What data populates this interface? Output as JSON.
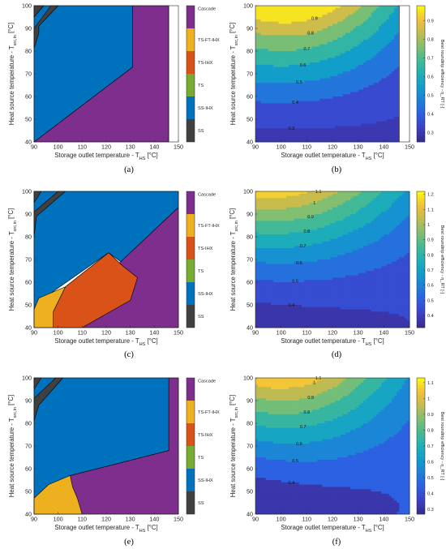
{
  "panels": [
    {
      "caption": "(a)",
      "xlabel": "Storage outlet temperature - T_HS [°C]",
      "ylabel": "Heat source temperature - T_src,in [°C]",
      "chart_data": {
        "type": "heatmap",
        "subtype": "categorical-region-map",
        "x_ticks": [
          90,
          100,
          110,
          120,
          130,
          140,
          150
        ],
        "y_ticks": [
          40,
          50,
          60,
          70,
          80,
          90,
          100
        ],
        "xlim": [
          90,
          150
        ],
        "ylim": [
          40,
          100
        ],
        "categories": [
          "SS",
          "SS-IHX",
          "TS",
          "TS-IHX",
          "TS-FT-IHX",
          "Cascade"
        ],
        "regions": [
          {
            "category": "Cascade",
            "polygon": [
              [
                90,
                40
              ],
              [
                131,
                73
              ],
              [
                131,
                100
              ],
              [
                146,
                100
              ],
              [
                146,
                40
              ]
            ]
          },
          {
            "category": "SS-IHX",
            "polygon": [
              [
                90,
                40
              ],
              [
                90,
                100
              ],
              [
                131,
                100
              ],
              [
                131,
                73
              ]
            ]
          },
          {
            "category": "SS",
            "polygon": [
              [
                90,
                81
              ],
              [
                90,
                90
              ],
              [
                97,
                100
              ],
              [
                100,
                100
              ],
              [
                92,
                91
              ],
              [
                92,
                88
              ]
            ]
          },
          {
            "category": "SS",
            "polygon": [
              [
                90,
                95
              ],
              [
                90,
                100
              ],
              [
                94,
                100
              ]
            ]
          }
        ],
        "no_data_x_range": [
          146,
          150
        ]
      }
    },
    {
      "caption": "(b)",
      "xlabel": "Storage outlet temperature - T_HS [°C]",
      "ylabel": "Heat source temperature - T_src,in [°C]",
      "colorbar_label": "Best roundtrip efficiency - η_RT [-]",
      "chart_data": {
        "type": "heatmap",
        "subtype": "filled-contour",
        "x_ticks": [
          90,
          100,
          110,
          120,
          130,
          140,
          150
        ],
        "y_ticks": [
          40,
          50,
          60,
          70,
          80,
          90,
          100
        ],
        "xlim": [
          90,
          150
        ],
        "ylim": [
          40,
          100
        ],
        "colorbar_ticks": [
          0.3,
          0.4,
          0.5,
          0.6,
          0.7,
          0.8,
          0.9
        ],
        "clim": [
          0.25,
          0.98
        ],
        "contour_labels": [
          "0.3",
          "0.4",
          "0.5",
          "0.6",
          "0.7",
          "0.8",
          "0.9"
        ],
        "no_data_x_range": [
          146,
          150
        ]
      }
    },
    {
      "caption": "(c)",
      "xlabel": "Storage outlet temperature - T_HS [°C]",
      "ylabel": "Heat source temperature - T_src,in [°C]",
      "chart_data": {
        "type": "heatmap",
        "subtype": "categorical-region-map",
        "x_ticks": [
          90,
          100,
          110,
          120,
          130,
          140,
          150
        ],
        "y_ticks": [
          40,
          50,
          60,
          70,
          80,
          90,
          100
        ],
        "xlim": [
          90,
          150
        ],
        "ylim": [
          40,
          100
        ],
        "categories": [
          "SS",
          "SS-IHX",
          "TS",
          "TS-IHX",
          "TS-FT-IHX",
          "Cascade"
        ],
        "regions": [
          {
            "category": "Cascade",
            "polygon": [
              [
                90,
                40
              ],
              [
                90,
                46
              ],
              [
                110,
                53
              ],
              [
                150,
                93
              ],
              [
                150,
                40
              ]
            ]
          },
          {
            "category": "SS-IHX",
            "polygon": [
              [
                90,
                46
              ],
              [
                90,
                100
              ],
              [
                150,
                100
              ],
              [
                150,
                93
              ],
              [
                126,
                69
              ],
              [
                121,
                73
              ],
              [
                94,
                53
              ]
            ]
          },
          {
            "category": "TS-IHX",
            "polygon": [
              [
                98,
                40
              ],
              [
                110,
                40
              ],
              [
                130,
                52
              ],
              [
                133,
                62
              ],
              [
                127,
                67
              ],
              [
                124,
                70
              ],
              [
                121,
                73
              ],
              [
                103,
                58
              ],
              [
                98,
                47
              ]
            ]
          },
          {
            "category": "TS-FT-IHX",
            "polygon": [
              [
                90,
                40
              ],
              [
                98,
                40
              ],
              [
                98,
                47
              ],
              [
                103,
                58
              ],
              [
                92,
                53
              ],
              [
                90,
                48
              ]
            ]
          },
          {
            "category": "SS",
            "polygon": [
              [
                90,
                80
              ],
              [
                90,
                91
              ],
              [
                100,
                100
              ],
              [
                103,
                100
              ],
              [
                91,
                89
              ]
            ]
          },
          {
            "category": "SS",
            "polygon": [
              [
                90,
                95
              ],
              [
                90,
                100
              ],
              [
                93,
                100
              ]
            ]
          }
        ]
      }
    },
    {
      "caption": "(d)",
      "xlabel": "Storage outlet temperature - T_HS [°C]",
      "ylabel": "Heat source temperature - T_src,in [°C]",
      "colorbar_label": "Best roundtrip efficiency - η_RT [-]",
      "chart_data": {
        "type": "heatmap",
        "subtype": "filled-contour",
        "x_ticks": [
          90,
          100,
          110,
          120,
          130,
          140,
          150
        ],
        "y_ticks": [
          40,
          50,
          60,
          70,
          80,
          90,
          100
        ],
        "xlim": [
          90,
          150
        ],
        "ylim": [
          40,
          100
        ],
        "colorbar_ticks": [
          0.4,
          0.5,
          0.6,
          0.7,
          0.8,
          0.9,
          1,
          1.1,
          1.2
        ],
        "clim": [
          0.32,
          1.22
        ],
        "contour_labels": [
          "0.4",
          "0.5",
          "0.6",
          "0.7",
          "0.8",
          "0.9",
          "1",
          "1.1"
        ]
      }
    },
    {
      "caption": "(e)",
      "xlabel": "Storage outlet temperature - T_HS [°C]",
      "ylabel": "Heat source temperature - T_src,in [°C]",
      "chart_data": {
        "type": "heatmap",
        "subtype": "categorical-region-map",
        "x_ticks": [
          90,
          100,
          110,
          120,
          130,
          140,
          150
        ],
        "y_ticks": [
          40,
          50,
          60,
          70,
          80,
          90,
          100
        ],
        "xlim": [
          90,
          150
        ],
        "ylim": [
          40,
          100
        ],
        "categories": [
          "SS",
          "SS-IHX",
          "TS",
          "TS-IHX",
          "TS-FT-IHX",
          "Cascade"
        ],
        "regions": [
          {
            "category": "Cascade",
            "polygon": [
              [
                90,
                40
              ],
              [
                150,
                40
              ],
              [
                150,
                100
              ],
              [
                146,
                100
              ],
              [
                146,
                68
              ],
              [
                105,
                57
              ],
              [
                90,
                47
              ]
            ]
          },
          {
            "category": "SS-IHX",
            "polygon": [
              [
                90,
                47
              ],
              [
                90,
                100
              ],
              [
                146,
                100
              ],
              [
                146,
                68
              ],
              [
                105,
                57
              ]
            ]
          },
          {
            "category": "TS-FT-IHX",
            "polygon": [
              [
                90,
                40
              ],
              [
                110,
                40
              ],
              [
                108,
                47
              ],
              [
                106,
                52
              ],
              [
                105,
                57
              ],
              [
                96,
                53
              ],
              [
                90,
                47
              ]
            ]
          },
          {
            "category": "SS",
            "polygon": [
              [
                90,
                81
              ],
              [
                90,
                91
              ],
              [
                99,
                100
              ],
              [
                102,
                100
              ],
              [
                92,
                88
              ]
            ]
          },
          {
            "category": "SS",
            "polygon": [
              [
                90,
                95
              ],
              [
                90,
                100
              ],
              [
                93,
                100
              ]
            ]
          }
        ]
      }
    },
    {
      "caption": "(f)",
      "xlabel": "Storage outlet temperature - T_HS [°C]",
      "ylabel": "Heat source temperature - T_src,in [°C]",
      "colorbar_label": "Best roundtrip efficiency - η_RT [-]",
      "chart_data": {
        "type": "heatmap",
        "subtype": "filled-contour",
        "x_ticks": [
          90,
          100,
          110,
          120,
          130,
          140,
          150
        ],
        "y_ticks": [
          40,
          50,
          60,
          70,
          80,
          90,
          100
        ],
        "xlim": [
          90,
          150
        ],
        "ylim": [
          40,
          100
        ],
        "colorbar_ticks": [
          0.3,
          0.4,
          0.5,
          0.6,
          0.7,
          0.8,
          0.9,
          1,
          1.1
        ],
        "clim": [
          0.27,
          1.13
        ],
        "contour_labels": [
          "0.4",
          "0.5",
          "0.6",
          "0.7",
          "0.8",
          "0.9",
          "1",
          "1.1"
        ]
      }
    }
  ],
  "legend": {
    "items": [
      {
        "label": "Cascade",
        "color": "#7e2f8e"
      },
      {
        "label": "TS-FT-IHX",
        "color": "#edb120"
      },
      {
        "label": "TS-IHX",
        "color": "#d95319"
      },
      {
        "label": "TS",
        "color": "#77ac30"
      },
      {
        "label": "SS-IHX",
        "color": "#0072bd"
      },
      {
        "label": "SS",
        "color": "#404040"
      }
    ]
  },
  "colors": {
    "nodata": "#ffffff",
    "parula": [
      "#352a87",
      "#3e3fc5",
      "#2d5ee3",
      "#1f7ed8",
      "#119ccd",
      "#1fb1b5",
      "#46ba93",
      "#82bf70",
      "#c4bb4f",
      "#f3c23a",
      "#f9fb0e"
    ]
  }
}
